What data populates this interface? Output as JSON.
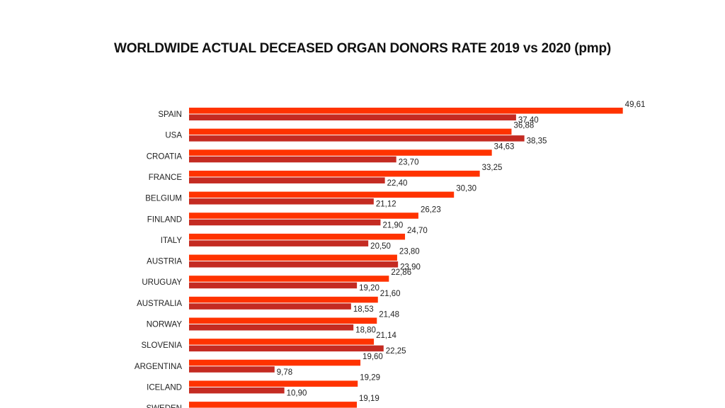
{
  "chart_data": {
    "type": "bar",
    "orientation": "horizontal",
    "title": "WORLDWIDE ACTUAL DECEASED ORGAN DONORS RATE 2019 vs 2020 (pmp)",
    "xlabel": "",
    "ylabel": "",
    "xlim": [
      0,
      50
    ],
    "grid": false,
    "legend": "none",
    "categories": [
      "SPAIN",
      "USA",
      "CROATIA",
      "FRANCE",
      "BELGIUM",
      "FINLAND",
      "ITALY",
      "AUSTRIA",
      "URUGUAY",
      "AUSTRALIA",
      "NORWAY",
      "SLOVENIA",
      "ARGENTINA",
      "ICELAND",
      "SWEDEN"
    ],
    "series": [
      {
        "color": "#ff3300",
        "values": [
          49.61,
          36.88,
          34.63,
          33.25,
          30.3,
          26.23,
          24.7,
          23.8,
          22.86,
          21.6,
          21.48,
          21.14,
          19.6,
          19.29,
          19.19
        ],
        "labels": [
          "49,61",
          "36,88",
          "34,63",
          "33,25",
          "30,30",
          "26,23",
          "24,70",
          "23,80",
          "22,86",
          "21,60",
          "21,48",
          "21,14",
          "19,60",
          "19,29",
          "19,19"
        ]
      },
      {
        "color": "#c42b22",
        "values": [
          37.4,
          38.35,
          23.7,
          22.4,
          21.12,
          21.9,
          20.5,
          23.9,
          19.2,
          18.53,
          18.8,
          22.25,
          9.78,
          10.9,
          null
        ],
        "labels": [
          "37,40",
          "38,35",
          "23,70",
          "22,40",
          "21,12",
          "21,90",
          "20,50",
          "23,90",
          "19,20",
          "18,53",
          "18,80",
          "22,25",
          "9,78",
          "10,90",
          ""
        ]
      }
    ]
  }
}
